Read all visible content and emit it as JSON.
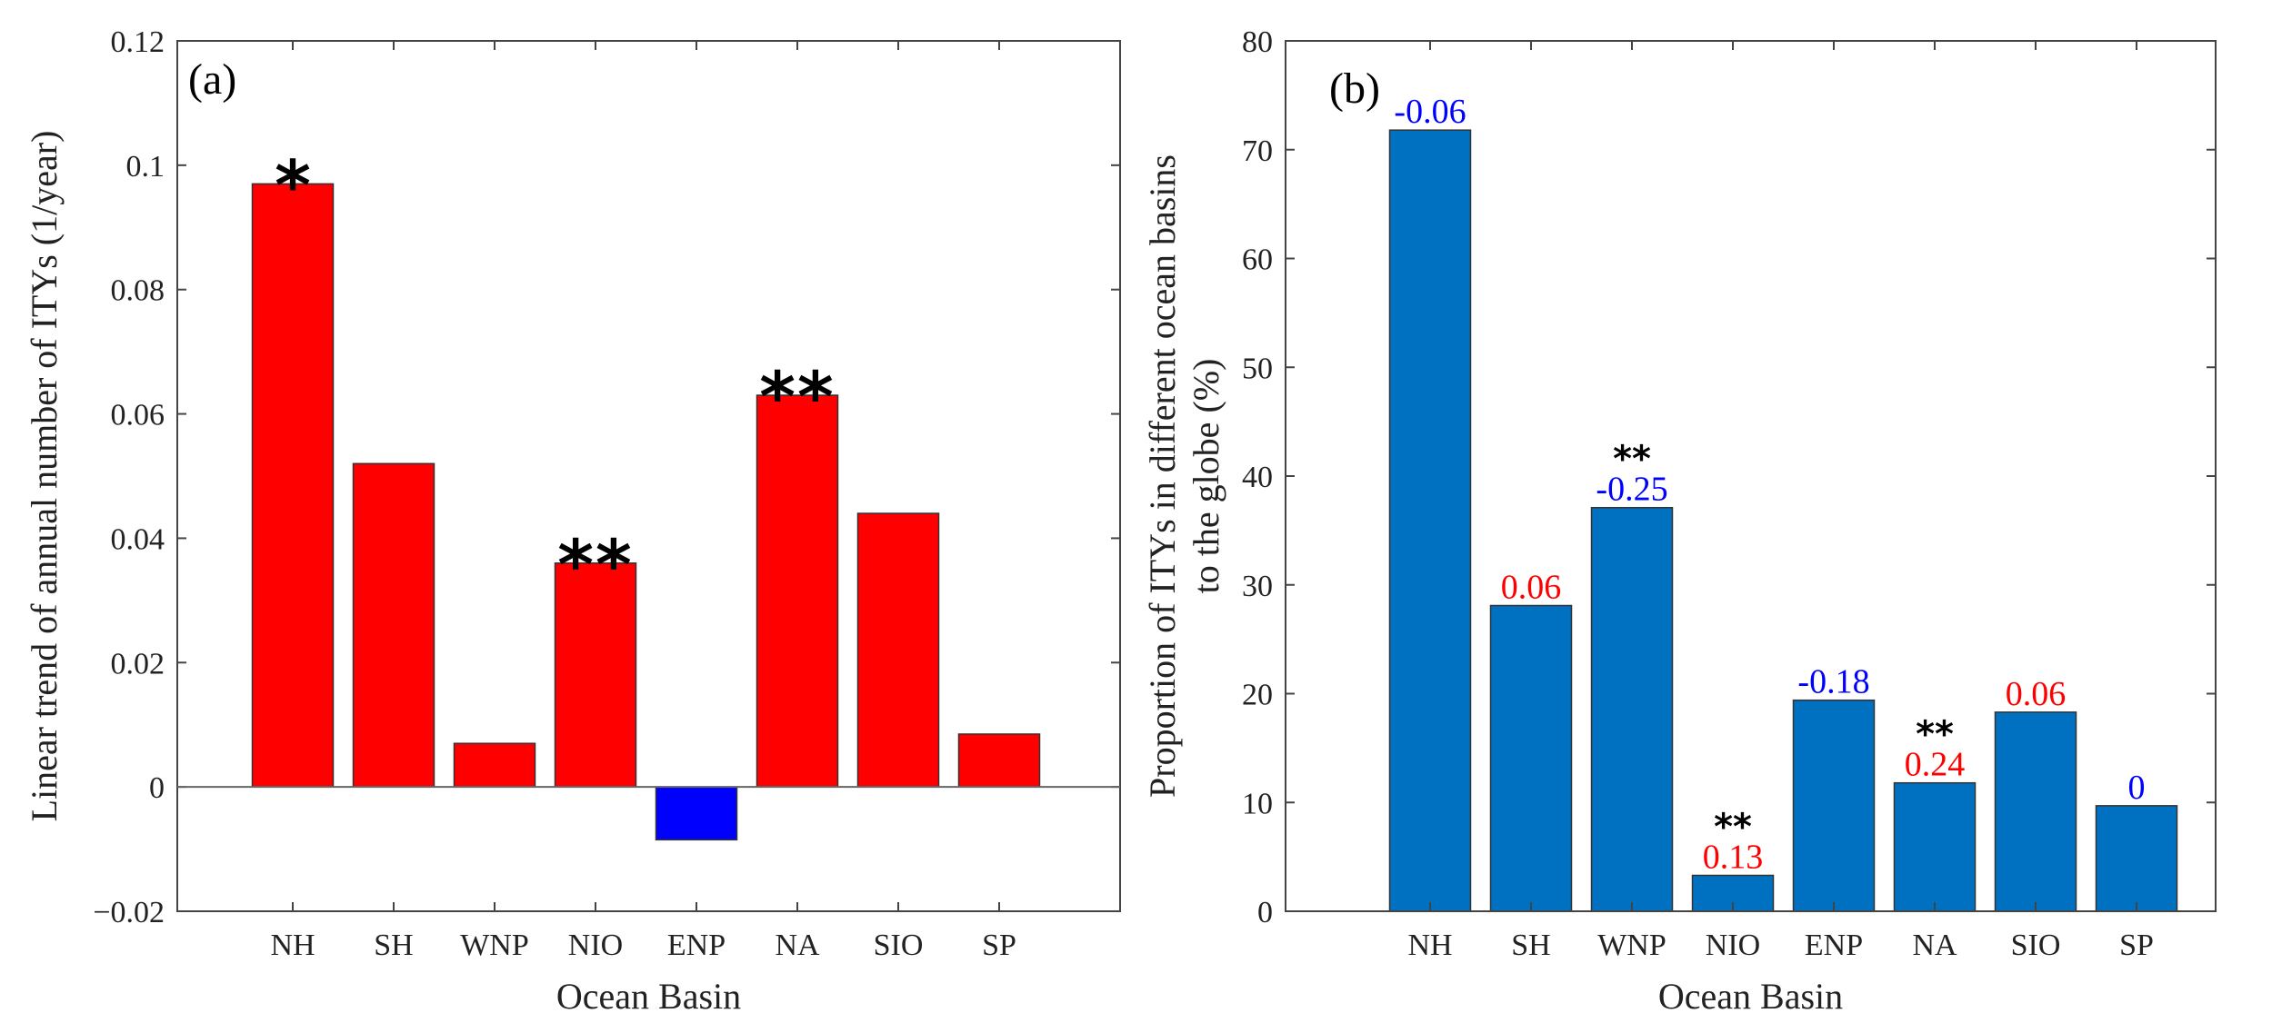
{
  "chart_data": [
    {
      "type": "bar",
      "panel_label": "(a)",
      "categories": [
        "NH",
        "SH",
        "WNP",
        "NIO",
        "ENP",
        "NA",
        "SIO",
        "SP"
      ],
      "values": [
        0.097,
        0.052,
        0.007,
        0.036,
        -0.0085,
        0.063,
        0.044,
        0.0085
      ],
      "colors": [
        "#ff0000",
        "#ff0000",
        "#ff0000",
        "#ff0000",
        "#0000ff",
        "#ff0000",
        "#ff0000",
        "#ff0000"
      ],
      "significance": [
        "*",
        "",
        "",
        "**",
        "",
        "**",
        "",
        ""
      ],
      "xlabel": "Ocean Basin",
      "ylabel": "Linear trend of annual number of ITYs (1/year)",
      "ylim": [
        -0.02,
        0.12
      ],
      "yticks": [
        -0.02,
        0,
        0.02,
        0.04,
        0.06,
        0.08,
        0.1,
        0.12
      ],
      "ytick_labels": [
        "−0.02",
        "0",
        "0.02",
        "0.04",
        "0.06",
        "0.08",
        "0.1",
        "0.12"
      ]
    },
    {
      "type": "bar",
      "panel_label": "(b)",
      "categories": [
        "NH",
        "SH",
        "WNP",
        "NIO",
        "ENP",
        "NA",
        "SIO",
        "SP"
      ],
      "values": [
        71.8,
        28.1,
        37.1,
        3.3,
        19.4,
        11.8,
        18.3,
        9.7
      ],
      "bar_color": "#0070c0",
      "annotations": [
        "-0.06",
        "0.06",
        "-0.25",
        "0.13",
        "-0.18",
        "0.24",
        "0.06",
        "0"
      ],
      "annotation_colors": [
        "#0000ff",
        "#ff0000",
        "#0000ff",
        "#ff0000",
        "#0000ff",
        "#ff0000",
        "#ff0000",
        "#0000ff"
      ],
      "significance": [
        "",
        "",
        "**",
        "**",
        "",
        "**",
        "",
        ""
      ],
      "xlabel": "Ocean Basin",
      "ylabel_line1": "Proportion of ITYs in different ocean basins",
      "ylabel_line2": "to the globe (%)",
      "ylim": [
        0,
        80
      ],
      "yticks": [
        0,
        10,
        20,
        30,
        40,
        50,
        60,
        70,
        80
      ],
      "ytick_labels": [
        "0",
        "10",
        "20",
        "30",
        "40",
        "50",
        "60",
        "70",
        "80"
      ]
    }
  ]
}
